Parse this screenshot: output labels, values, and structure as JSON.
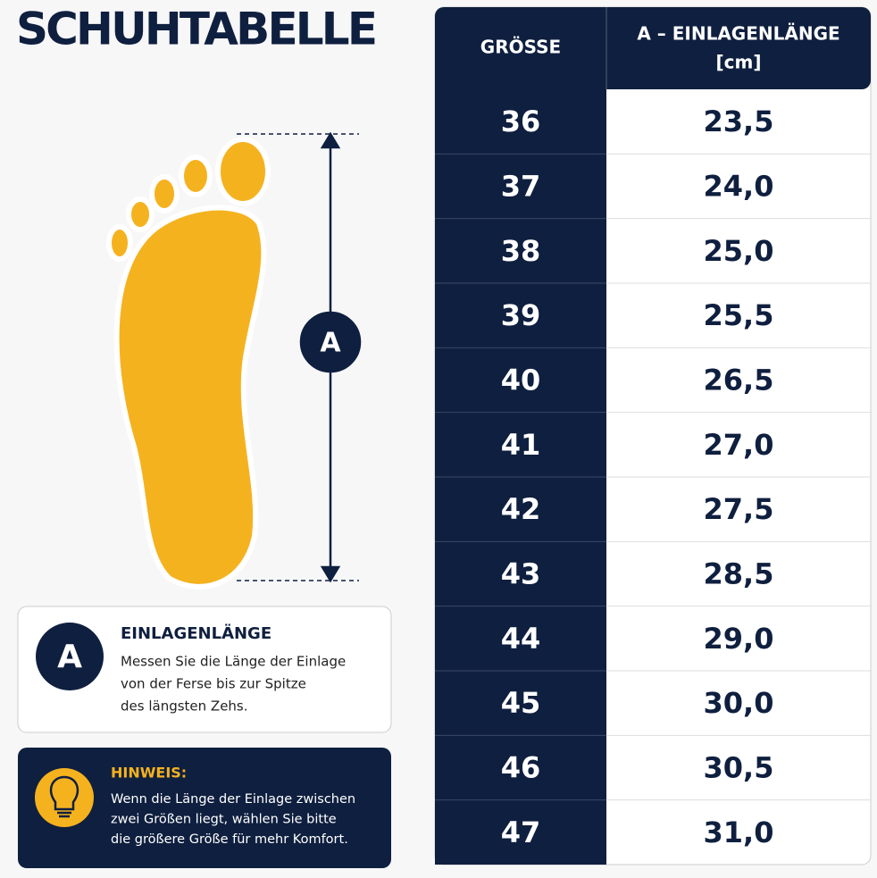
{
  "title": "SCHUHTABELLE",
  "diagram": {
    "label": "A"
  },
  "info": {
    "badge": "A",
    "title": "EINLAGENLÄNGE",
    "lines": [
      "Messen Sie die Länge der Einlage",
      "von der Ferse bis zur Spitze",
      "des längsten Zehs."
    ]
  },
  "note": {
    "title": "HINWEIS:",
    "lines": [
      "Wenn die Länge der Einlage zwischen",
      "zwei Größen liegt, wählen Sie bitte",
      "die größere Größe für mehr Komfort."
    ]
  },
  "table": {
    "header": [
      "GRÖSSE",
      [
        "A – EINLAGENLÄNGE",
        "[cm]"
      ]
    ],
    "rows": [
      [
        "36",
        "23,5"
      ],
      [
        "37",
        "24,0"
      ],
      [
        "38",
        "25,0"
      ],
      [
        "39",
        "25,5"
      ],
      [
        "40",
        "26,5"
      ],
      [
        "41",
        "27,0"
      ],
      [
        "42",
        "27,5"
      ],
      [
        "43",
        "28,5"
      ],
      [
        "44",
        "29,0"
      ],
      [
        "45",
        "30,0"
      ],
      [
        "46",
        "30,5"
      ],
      [
        "47",
        "31,0"
      ]
    ]
  }
}
